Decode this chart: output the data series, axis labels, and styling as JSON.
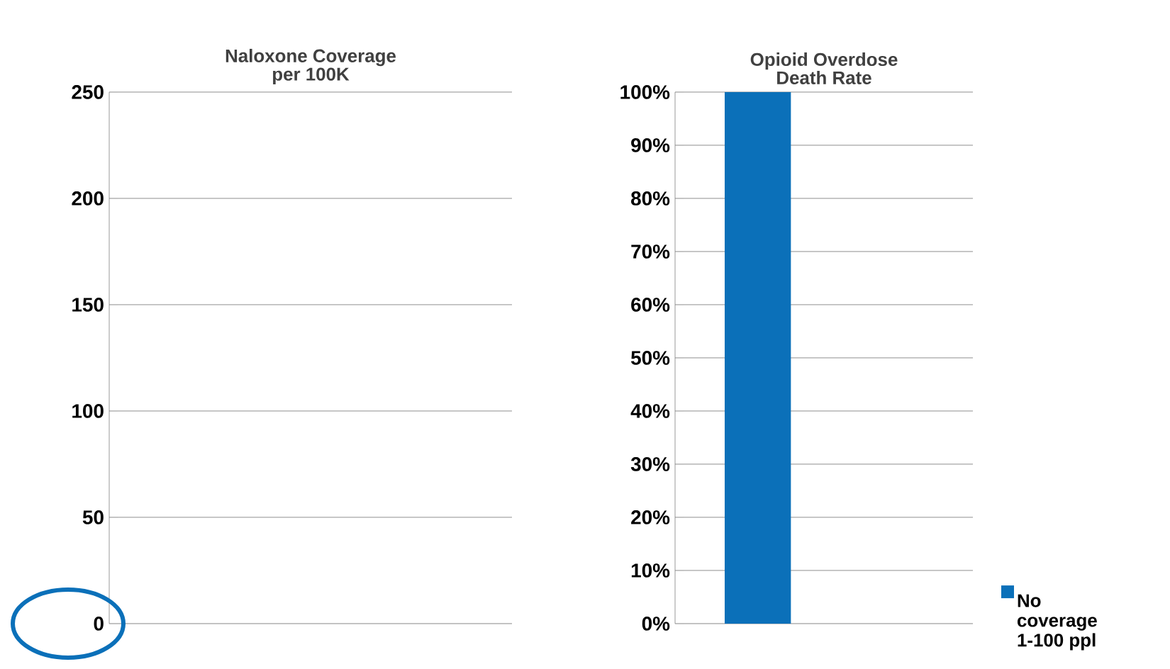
{
  "chart_data": [
    {
      "type": "bar",
      "title": "Naloxone Coverage\nper 100K",
      "categories": [
        null
      ],
      "values": [
        null
      ],
      "ylim": [
        0,
        250
      ],
      "yticks": [
        0,
        50,
        100,
        150,
        200,
        250
      ],
      "grid": "y"
    },
    {
      "type": "bar",
      "title": "Opioid Overdose\nDeath Rate",
      "categories": [
        null
      ],
      "series": [
        {
          "name": "No coverage 1-100 ppl",
          "color": "#0b70b9",
          "values": [
            100
          ]
        }
      ],
      "ylim": [
        0,
        100
      ],
      "yticks": [
        {
          "value": 0,
          "label": "0%"
        },
        {
          "value": 10,
          "label": "10%"
        },
        {
          "value": 20,
          "label": "20%"
        },
        {
          "value": 30,
          "label": "30%"
        },
        {
          "value": 40,
          "label": "40%"
        },
        {
          "value": 50,
          "label": "50%"
        },
        {
          "value": 60,
          "label": "60%"
        },
        {
          "value": 70,
          "label": "70%"
        },
        {
          "value": 80,
          "label": "80%"
        },
        {
          "value": 90,
          "label": "90%"
        },
        {
          "value": 100,
          "label": "100%"
        }
      ],
      "grid": "y",
      "legend": "right"
    }
  ]
}
